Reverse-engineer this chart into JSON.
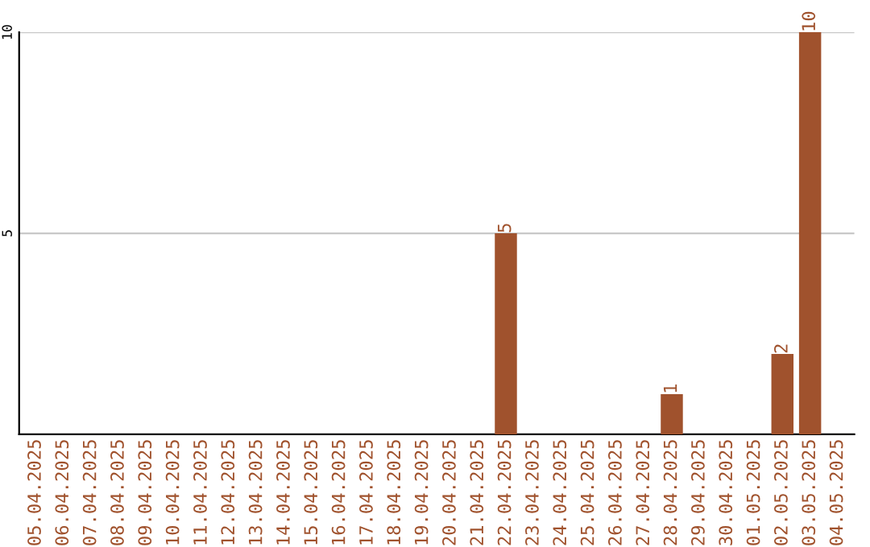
{
  "chart_data": {
    "type": "bar",
    "categories": [
      "05.04.2025",
      "06.04.2025",
      "07.04.2025",
      "08.04.2025",
      "09.04.2025",
      "10.04.2025",
      "11.04.2025",
      "12.04.2025",
      "13.04.2025",
      "14.04.2025",
      "15.04.2025",
      "16.04.2025",
      "17.04.2025",
      "18.04.2025",
      "19.04.2025",
      "20.04.2025",
      "21.04.2025",
      "22.04.2025",
      "23.04.2025",
      "24.04.2025",
      "25.04.2025",
      "26.04.2025",
      "27.04.2025",
      "28.04.2025",
      "29.04.2025",
      "30.04.2025",
      "01.05.2025",
      "02.05.2025",
      "03.05.2025",
      "04.05.2025"
    ],
    "values": [
      0,
      0,
      0,
      0,
      0,
      0,
      0,
      0,
      0,
      0,
      0,
      0,
      0,
      0,
      0,
      0,
      0,
      5,
      0,
      0,
      0,
      0,
      0,
      1,
      0,
      0,
      0,
      2,
      10,
      0
    ],
    "value_labels": [
      null,
      null,
      null,
      null,
      null,
      null,
      null,
      null,
      null,
      null,
      null,
      null,
      null,
      null,
      null,
      null,
      null,
      "5",
      null,
      null,
      null,
      null,
      null,
      "1",
      null,
      null,
      null,
      "2",
      "10",
      null
    ],
    "color": "#a0522d",
    "ylim": [
      0,
      10
    ],
    "yticks": [
      5,
      10
    ],
    "grid": "y"
  }
}
